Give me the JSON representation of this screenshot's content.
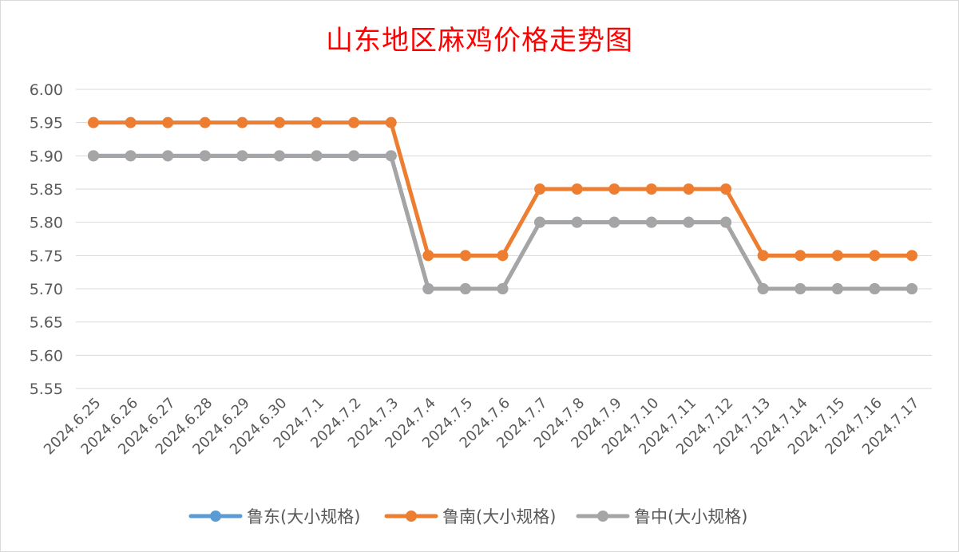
{
  "chart_data": {
    "type": "line",
    "title": "山东地区麻鸡价格走势图",
    "xlabel": "",
    "ylabel": "",
    "ylim": [
      5.55,
      6.0
    ],
    "ytick_step": 0.05,
    "grid": true,
    "legend_position": "bottom",
    "categories": [
      "2024.6.25",
      "2024.6.26",
      "2024.6.27",
      "2024.6.28",
      "2024.6.29",
      "2024.6.30",
      "2024.7.1",
      "2024.7.2",
      "2024.7.3",
      "2024.7.4",
      "2024.7.5",
      "2024.7.6",
      "2024.7.7",
      "2024.7.8",
      "2024.7.9",
      "2024.7.10",
      "2024.7.11",
      "2024.7.12",
      "2024.7.13",
      "2024.7.14",
      "2024.7.15",
      "2024.7.16",
      "2024.7.17"
    ],
    "series": [
      {
        "name": "鲁东(大小规格)",
        "color": "#5b9bd5",
        "values": [
          5.9,
          5.9,
          5.9,
          5.9,
          5.9,
          5.9,
          5.9,
          5.9,
          5.9,
          5.7,
          5.7,
          5.7,
          5.8,
          5.8,
          5.8,
          5.8,
          5.8,
          5.8,
          5.7,
          5.7,
          5.7,
          5.7,
          5.7
        ]
      },
      {
        "name": "鲁南(大小规格)",
        "color": "#ed7d31",
        "values": [
          5.95,
          5.95,
          5.95,
          5.95,
          5.95,
          5.95,
          5.95,
          5.95,
          5.95,
          5.75,
          5.75,
          5.75,
          5.85,
          5.85,
          5.85,
          5.85,
          5.85,
          5.85,
          5.75,
          5.75,
          5.75,
          5.75,
          5.75
        ]
      },
      {
        "name": "鲁中(大小规格)",
        "color": "#a5a5a5",
        "values": [
          5.9,
          5.9,
          5.9,
          5.9,
          5.9,
          5.9,
          5.9,
          5.9,
          5.9,
          5.7,
          5.7,
          5.7,
          5.8,
          5.8,
          5.8,
          5.8,
          5.8,
          5.8,
          5.7,
          5.7,
          5.7,
          5.7,
          5.7
        ]
      }
    ]
  }
}
